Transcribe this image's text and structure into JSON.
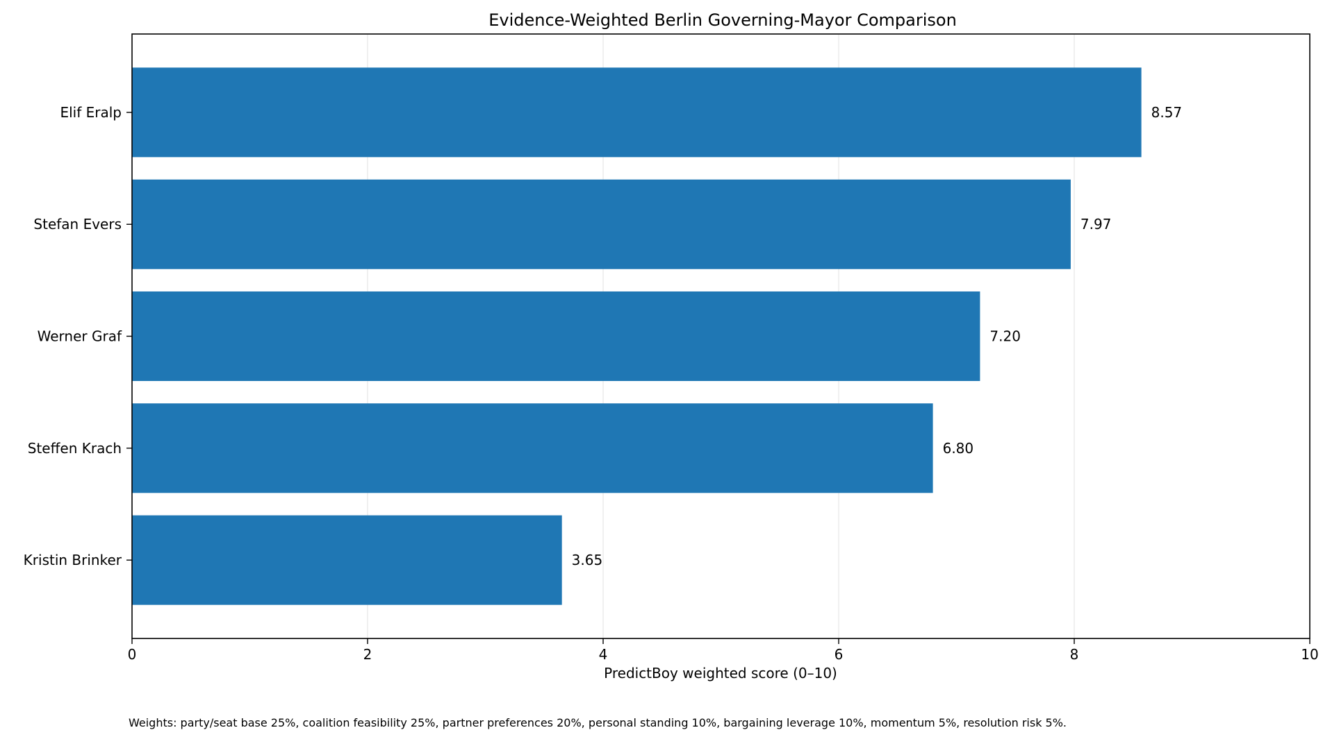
{
  "chart_data": {
    "type": "bar",
    "orientation": "horizontal",
    "title": "Evidence-Weighted Berlin Governing-Mayor Comparison",
    "xlabel": "PredictBoy weighted score (0–10)",
    "ylabel": "",
    "categories": [
      "Elif Eralp",
      "Stefan Evers",
      "Werner Graf",
      "Steffen Krach",
      "Kristin Brinker"
    ],
    "values": [
      8.57,
      7.97,
      7.2,
      6.8,
      3.65
    ],
    "value_labels": [
      "8.57",
      "7.97",
      "7.20",
      "6.80",
      "3.65"
    ],
    "xlim": [
      0,
      10
    ],
    "xticks": [
      0,
      2,
      4,
      6,
      8,
      10
    ],
    "grid": "vertical",
    "bar_color": "#1f77b4",
    "grid_color": "#e6e6e6"
  },
  "footnote": "Weights: party/seat base 25%, coalition feasibility 25%, partner preferences 20%, personal standing 10%, bargaining leverage 10%, momentum 5%, resolution risk 5%."
}
